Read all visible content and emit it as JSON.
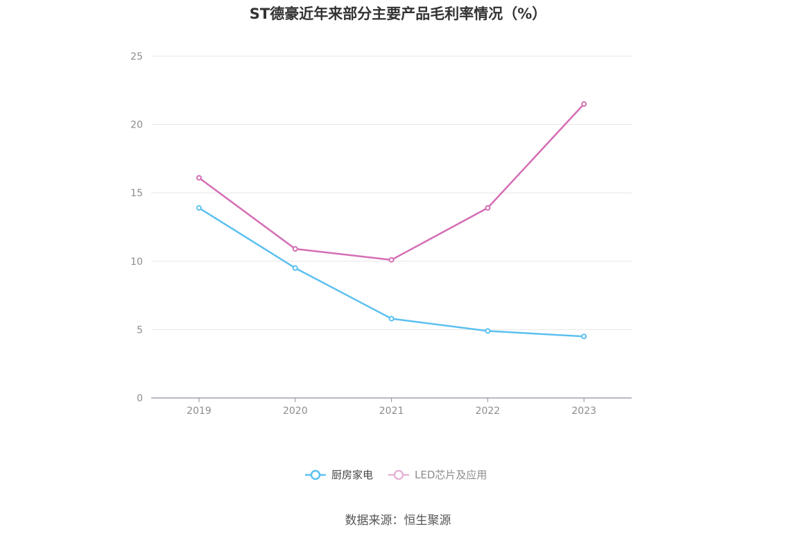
{
  "title": "ST德豪近年来部分主要产品毛利率情况（%）",
  "source": "数据来源：恒生聚源",
  "chart_data": {
    "type": "line",
    "title": "ST德豪近年来部分主要产品毛利率情况（%）",
    "categories": [
      "2019",
      "2020",
      "2021",
      "2022",
      "2023"
    ],
    "ylim": [
      0,
      25
    ],
    "yticks": [
      0,
      5,
      10,
      15,
      20,
      25
    ],
    "grid": true,
    "legend_position": "bottom",
    "series": [
      {
        "name": "厨房家电",
        "color": "#5bc0f0",
        "values": [
          13.9,
          9.5,
          5.8,
          4.9,
          4.5
        ]
      },
      {
        "name": "LED芯片及应用",
        "color": "#d46db4",
        "values": [
          16.1,
          10.9,
          10.1,
          13.9,
          21.5
        ]
      }
    ]
  }
}
